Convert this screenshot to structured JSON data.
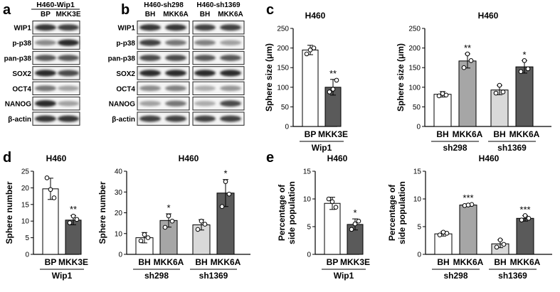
{
  "panels": {
    "a": "a",
    "b": "b",
    "c": "c",
    "d": "d",
    "e": "e"
  },
  "blot_a": {
    "title": "H460-Wip1",
    "lanes": [
      "BP",
      "MKK3E"
    ],
    "proteins": [
      "WIP1",
      "p-p38",
      "pan-p38",
      "SOX2",
      "OCT4",
      "NANOG",
      "β-actin"
    ]
  },
  "blot_b": {
    "groups": [
      {
        "title": "H460-sh298",
        "lanes": [
          "BH",
          "MKK6A"
        ]
      },
      {
        "title": "H460-sh1369",
        "lanes": [
          "BH",
          "MKK6A"
        ]
      }
    ],
    "proteins": [
      "WIP1",
      "p-p38",
      "pan-p38",
      "SOX2",
      "OCT4",
      "NANOG",
      "β-actin"
    ]
  },
  "colors": {
    "white": "#ffffff",
    "light": "#d9d9d9",
    "gray": "#a6a6a6",
    "dark": "#5a5a5a"
  },
  "chart_data": [
    {
      "id": "c1",
      "type": "bar",
      "title": "H460",
      "ylabel": "Sphere size (μm)",
      "ylim": [
        0,
        250
      ],
      "ticks": [
        0,
        50,
        100,
        150,
        200,
        250
      ],
      "categories": [
        "BP",
        "MKK3E"
      ],
      "groups": [
        {
          "label": "Wip1",
          "span": [
            0,
            1
          ]
        }
      ],
      "values": [
        195,
        100
      ],
      "errors": [
        12,
        20
      ],
      "points": [
        [
          185,
          200,
          195
        ],
        [
          88,
          118,
          95
        ]
      ],
      "colors": [
        "white",
        "dark"
      ],
      "sig": [
        "",
        "**"
      ]
    },
    {
      "id": "c2",
      "type": "bar",
      "title": "H460",
      "ylabel": "Sphere size (μm)",
      "ylim": [
        0,
        250
      ],
      "ticks": [
        0,
        50,
        100,
        150,
        200,
        250
      ],
      "categories": [
        "BH",
        "MKK6A",
        "BH",
        "MKK6A"
      ],
      "groups": [
        {
          "label": "sh298",
          "span": [
            0,
            1
          ]
        },
        {
          "label": "sh1369",
          "span": [
            2,
            3
          ]
        }
      ],
      "values": [
        82,
        167,
        93,
        152
      ],
      "errors": [
        7,
        18,
        12,
        16
      ],
      "points": [
        [
          78,
          80,
          84
        ],
        [
          150,
          168,
          185
        ],
        [
          85,
          88,
          105
        ],
        [
          140,
          147,
          168
        ]
      ],
      "colors": [
        "white",
        "gray",
        "light",
        "dark"
      ],
      "sig": [
        "",
        "**",
        "",
        "*"
      ]
    },
    {
      "id": "d1",
      "type": "bar",
      "title": "H460",
      "ylabel": "Sphere number",
      "ylim": [
        0,
        25
      ],
      "ticks": [
        0,
        5,
        10,
        15,
        20,
        25
      ],
      "categories": [
        "BP",
        "MKK3E"
      ],
      "groups": [
        {
          "label": "Wip1",
          "span": [
            0,
            1
          ]
        }
      ],
      "values": [
        19.7,
        10.3
      ],
      "errors": [
        3.2,
        1.4
      ],
      "points": [
        [
          23,
          17,
          19.5
        ],
        [
          9.5,
          10.5,
          11.5
        ]
      ],
      "colors": [
        "white",
        "dark"
      ],
      "sig": [
        "",
        "**"
      ]
    },
    {
      "id": "d2",
      "type": "bar",
      "title": "H460",
      "ylabel": "Sphere number",
      "ylim": [
        0,
        40
      ],
      "ticks": [
        0,
        10,
        20,
        30,
        40
      ],
      "categories": [
        "BH",
        "MKK6A",
        "BH",
        "MKK6A"
      ],
      "groups": [
        {
          "label": "sh298",
          "span": [
            0,
            1
          ]
        },
        {
          "label": "sh1369",
          "span": [
            2,
            3
          ]
        }
      ],
      "values": [
        8,
        16.3,
        14.2,
        29.5
      ],
      "errors": [
        2.5,
        3.2,
        2.5,
        6.5
      ],
      "points": [
        [
          6.5,
          8,
          9.5
        ],
        [
          13,
          16,
          18.5
        ],
        [
          12,
          14.5,
          16
        ],
        [
          23,
          29,
          35
        ]
      ],
      "colors": [
        "white",
        "gray",
        "light",
        "dark"
      ],
      "sig": [
        "",
        "*",
        "",
        "*"
      ]
    },
    {
      "id": "e1",
      "type": "bar",
      "title": "H460",
      "ylabel": "Percentage of side population",
      "ylim": [
        0,
        15
      ],
      "ticks": [
        0,
        5,
        10,
        15
      ],
      "categories": [
        "BP",
        "MKK3E"
      ],
      "groups": [
        {
          "label": "Wip1",
          "span": [
            0,
            1
          ]
        }
      ],
      "values": [
        9.2,
        5.4
      ],
      "errors": [
        1.1,
        1.0
      ],
      "points": [
        [
          10,
          8.5,
          9.5
        ],
        [
          4.5,
          6,
          5.5
        ]
      ],
      "colors": [
        "white",
        "dark"
      ],
      "sig": [
        "",
        "*"
      ]
    },
    {
      "id": "e2",
      "type": "bar",
      "title": "H460",
      "ylabel": "Percentage of side population",
      "ylim": [
        0,
        15
      ],
      "ticks": [
        0,
        5,
        10,
        15
      ],
      "categories": [
        "BH",
        "MKK6A",
        "BH",
        "MKK6A"
      ],
      "groups": [
        {
          "label": "sh298",
          "span": [
            0,
            1
          ]
        },
        {
          "label": "sh1369",
          "span": [
            2,
            3
          ]
        }
      ],
      "values": [
        3.7,
        8.9,
        1.9,
        6.5
      ],
      "errors": [
        0.4,
        0.2,
        0.7,
        0.5
      ],
      "points": [
        [
          3.5,
          3.8,
          4
        ],
        [
          8.8,
          9,
          8.9
        ],
        [
          1.3,
          1.8,
          2.6
        ],
        [
          6.2,
          6.5,
          7
        ]
      ],
      "colors": [
        "white",
        "gray",
        "light",
        "dark"
      ],
      "sig": [
        "",
        "***",
        "",
        "***"
      ]
    }
  ]
}
